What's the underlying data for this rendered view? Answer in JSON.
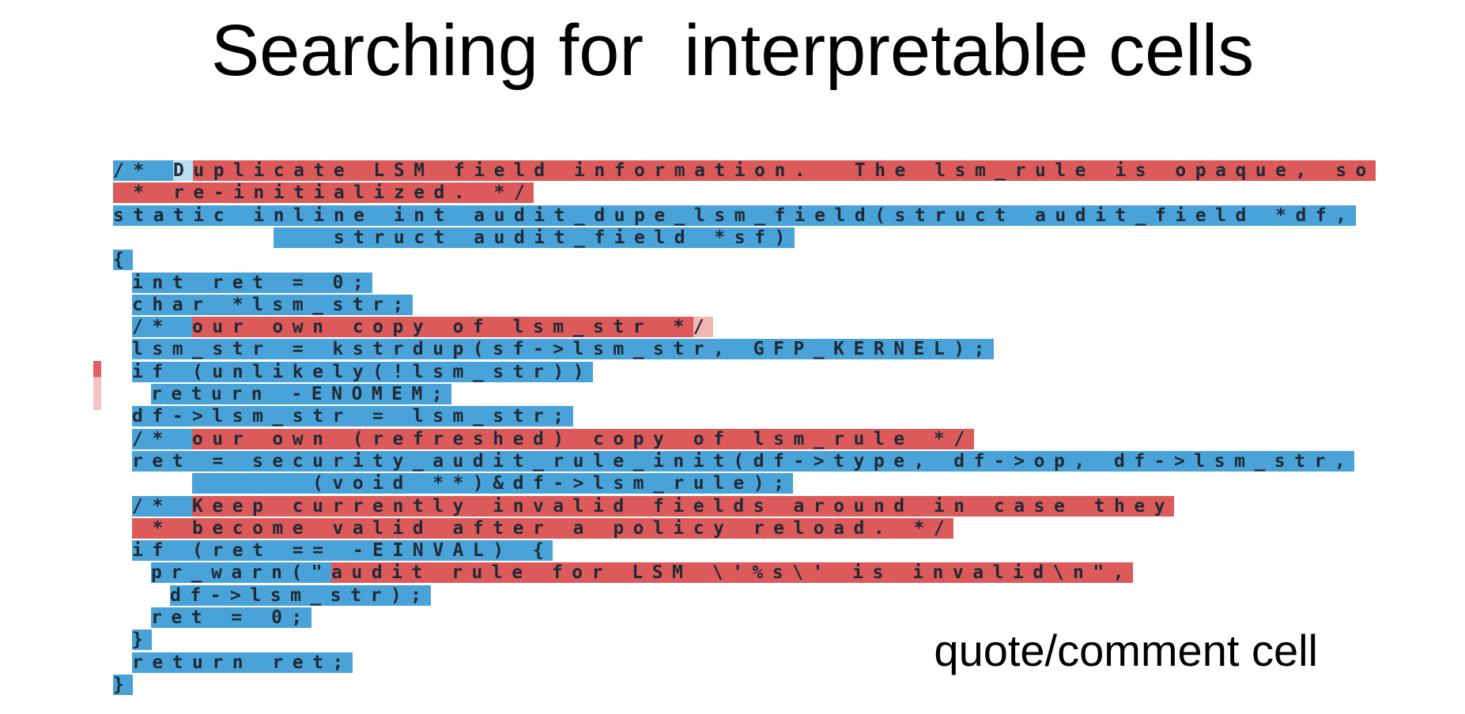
{
  "slide": {
    "title": "Searching for  interpretable cells",
    "caption": "quote/comment cell"
  },
  "colors": {
    "quote_comment_active": "#dc5a5a",
    "quote_comment_weak": "#f2b6b0",
    "inactive": "#4aa3d8",
    "inactive_weak": "#b9def2"
  },
  "code_lines": [
    {
      "indent": 0,
      "segments": [
        {
          "text": "/* ",
          "tone": "blue"
        },
        {
          "text": "D",
          "tone": "lightblue"
        },
        {
          "text": "uplicate LSM field information.  The lsm_rule is opaque, so",
          "tone": "red"
        }
      ]
    },
    {
      "indent": 0,
      "segments": [
        {
          "text": " * re-initialized. */",
          "tone": "red"
        }
      ]
    },
    {
      "indent": 0,
      "segments": [
        {
          "text": "static inline int audit_dupe_lsm_field(struct audit_field *df,",
          "tone": "blue"
        }
      ]
    },
    {
      "indent": 0,
      "segments": [
        {
          "text": "        ",
          "tone": "none"
        },
        {
          "text": "   struct audit_field *sf)",
          "tone": "blue"
        }
      ]
    },
    {
      "indent": 0,
      "segments": [
        {
          "text": "{",
          "tone": "blue"
        }
      ]
    },
    {
      "indent": 1,
      "segments": [
        {
          "text": "int ret = 0;",
          "tone": "blue"
        }
      ]
    },
    {
      "indent": 1,
      "segments": [
        {
          "text": "char *lsm_str;",
          "tone": "blue"
        }
      ]
    },
    {
      "indent": 1,
      "segments": [
        {
          "text": "/* ",
          "tone": "blue"
        },
        {
          "text": "our own copy of lsm_str *",
          "tone": "red"
        },
        {
          "text": "/",
          "tone": "lightred"
        }
      ]
    },
    {
      "indent": 1,
      "segments": [
        {
          "text": "lsm_str = kstrdup(sf->lsm_str, GFP_KERNEL);",
          "tone": "blue"
        }
      ]
    },
    {
      "indent": 1,
      "segments": [
        {
          "text": "if (unlikely(!lsm_str))",
          "tone": "blue"
        }
      ]
    },
    {
      "indent": 2,
      "segments": [
        {
          "text": "return -ENOMEM;",
          "tone": "blue"
        }
      ]
    },
    {
      "indent": 1,
      "segments": [
        {
          "text": "df->lsm_str = lsm_str;",
          "tone": "blue"
        }
      ]
    },
    {
      "indent": 1,
      "segments": [
        {
          "text": "/* ",
          "tone": "blue"
        },
        {
          "text": "our own (refreshed) copy of lsm_rule */",
          "tone": "red"
        }
      ]
    },
    {
      "indent": 1,
      "segments": [
        {
          "text": "ret = security_audit_rule_init(df->type, df->op, df->lsm_str,",
          "tone": "blue"
        }
      ]
    },
    {
      "indent": 1,
      "segments": [
        {
          "text": "   ",
          "tone": "none"
        },
        {
          "text": "      (void **)&df->lsm_rule);",
          "tone": "blue"
        }
      ]
    },
    {
      "indent": 1,
      "segments": [
        {
          "text": "/* ",
          "tone": "blue"
        },
        {
          "text": "Keep currently invalid fields around in case they",
          "tone": "red"
        }
      ]
    },
    {
      "indent": 1,
      "segments": [
        {
          "text": " * become valid after a policy reload. */",
          "tone": "red"
        }
      ]
    },
    {
      "indent": 1,
      "segments": [
        {
          "text": "if (ret == -EINVAL) {",
          "tone": "blue"
        }
      ]
    },
    {
      "indent": 2,
      "segments": [
        {
          "text": "pr_warn(\"",
          "tone": "blue"
        },
        {
          "text": "audit rule for LSM \\'%s\\' is invalid\\n\",",
          "tone": "red"
        }
      ]
    },
    {
      "indent": 3,
      "segments": [
        {
          "text": "df->lsm_str);",
          "tone": "blue"
        }
      ]
    },
    {
      "indent": 2,
      "segments": [
        {
          "text": "ret = 0;",
          "tone": "blue"
        }
      ]
    },
    {
      "indent": 1,
      "segments": [
        {
          "text": "}",
          "tone": "blue"
        }
      ]
    },
    {
      "indent": 1,
      "segments": [
        {
          "text": "return ret;",
          "tone": "blue"
        }
      ]
    },
    {
      "indent": 0,
      "segments": [
        {
          "text": "}",
          "tone": "blue"
        }
      ]
    }
  ]
}
